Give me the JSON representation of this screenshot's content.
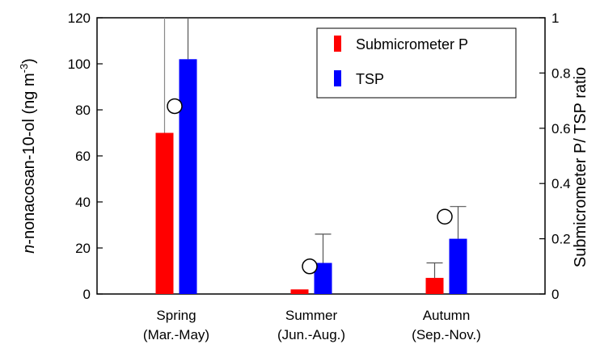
{
  "chart_data": {
    "type": "bar",
    "categories": [
      {
        "name": "Spring",
        "period": "(Mar.-May)"
      },
      {
        "name": "Summer",
        "period": "(Jun.-Aug.)"
      },
      {
        "name": "Autumn",
        "period": "(Sep.-Nov.)"
      }
    ],
    "series": [
      {
        "name": "Submicrometer P",
        "color": "#ff0000",
        "values": [
          70,
          2,
          7
        ],
        "error_upper": [
          null,
          null,
          13.5
        ]
      },
      {
        "name": "TSP",
        "color": "#0000ff",
        "values": [
          102,
          13.5,
          24
        ],
        "error_upper": [
          130,
          26,
          38
        ]
      }
    ],
    "ratio": {
      "name": "Submicrometer P/ TSP ratio",
      "values": [
        0.68,
        0.1,
        0.28
      ],
      "marker": "open-circle"
    },
    "ylabel_prefix": "n",
    "ylabel_main": "-nonacosan-10-ol (ng m",
    "ylabel_sup": "-3",
    "ylabel_end": ")",
    "ylabel_right": "Submicrometer P/ TSP ratio",
    "ylim": [
      0,
      120
    ],
    "yticks": [
      "0",
      "20",
      "40",
      "60",
      "80",
      "100",
      "120"
    ],
    "ylim_right": [
      0,
      1
    ],
    "yticks_right": [
      "0",
      "0.2",
      "0.4",
      "0.6",
      "0.8",
      "1"
    ],
    "legend_position": "top-right",
    "grid": false
  }
}
